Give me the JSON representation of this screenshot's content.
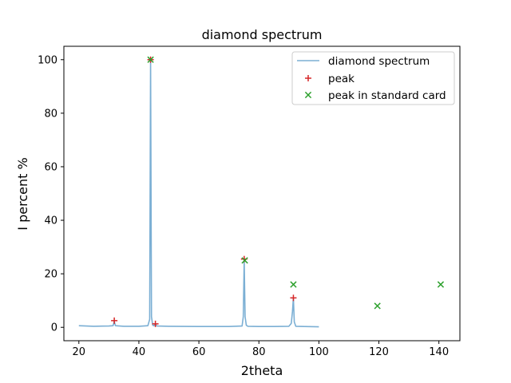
{
  "chart_data": {
    "type": "line",
    "title": "diamond spectrum",
    "xlabel": "2theta",
    "ylabel": "I percent %",
    "xlim": [
      15,
      147
    ],
    "ylim": [
      -5,
      105
    ],
    "xticks": [
      20,
      40,
      60,
      80,
      100,
      120,
      140
    ],
    "yticks": [
      0,
      20,
      40,
      60,
      80,
      100
    ],
    "grid": false,
    "legend_position": "upper right",
    "colors": {
      "spectrum": "#7bafd4",
      "peak": "#d62728",
      "standard": "#2ca02c"
    },
    "series": [
      {
        "name": "diamond spectrum",
        "kind": "line",
        "x": [
          20,
          25,
          30,
          31.4,
          31.8,
          32.2,
          35,
          40,
          43.0,
          43.6,
          43.9,
          44.2,
          44.6,
          45.0,
          45.5,
          46,
          50,
          60,
          70,
          74.4,
          74.8,
          75.1,
          75.4,
          75.8,
          76.3,
          80,
          85,
          90,
          90.8,
          91.2,
          91.5,
          91.8,
          92.3,
          95,
          100
        ],
        "y": [
          0.6,
          0.4,
          0.5,
          0.6,
          2.2,
          0.6,
          0.4,
          0.4,
          0.6,
          3,
          100,
          4,
          0.8,
          0.6,
          1.2,
          0.5,
          0.4,
          0.3,
          0.3,
          0.5,
          4,
          25,
          4,
          0.8,
          0.4,
          0.3,
          0.3,
          0.4,
          1.5,
          6,
          11,
          2,
          0.4,
          0.3,
          0.2
        ]
      },
      {
        "name": "peak",
        "kind": "scatter",
        "marker": "+",
        "x": [
          31.8,
          43.9,
          45.5,
          75.1,
          91.5
        ],
        "y": [
          2.5,
          100,
          1.3,
          25.5,
          11
        ]
      },
      {
        "name": "peak in standard card",
        "kind": "scatter",
        "marker": "x",
        "x": [
          43.9,
          75.3,
          91.5,
          119.5,
          140.6
        ],
        "y": [
          100,
          25,
          16,
          8,
          16
        ]
      }
    ]
  }
}
